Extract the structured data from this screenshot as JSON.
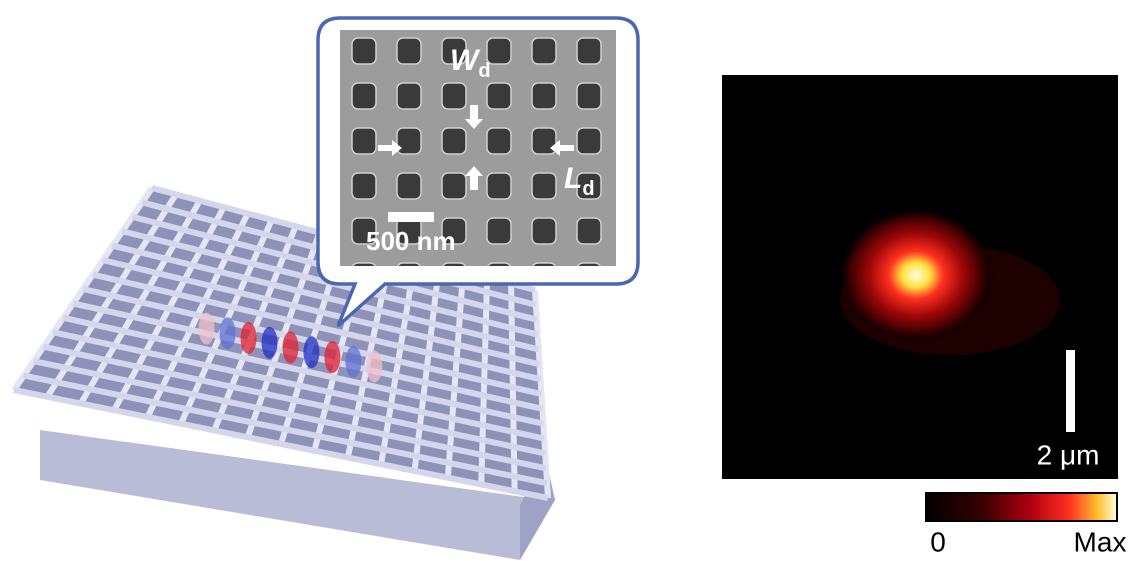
{
  "inset": {
    "width_label": "W",
    "width_subscript": "d",
    "length_label": "L",
    "length_subscript": "d",
    "scale_bar": "500 nm"
  },
  "map": {
    "scale_bar": "2 μm",
    "colorbar_min": "0",
    "colorbar_max": "Max"
  }
}
